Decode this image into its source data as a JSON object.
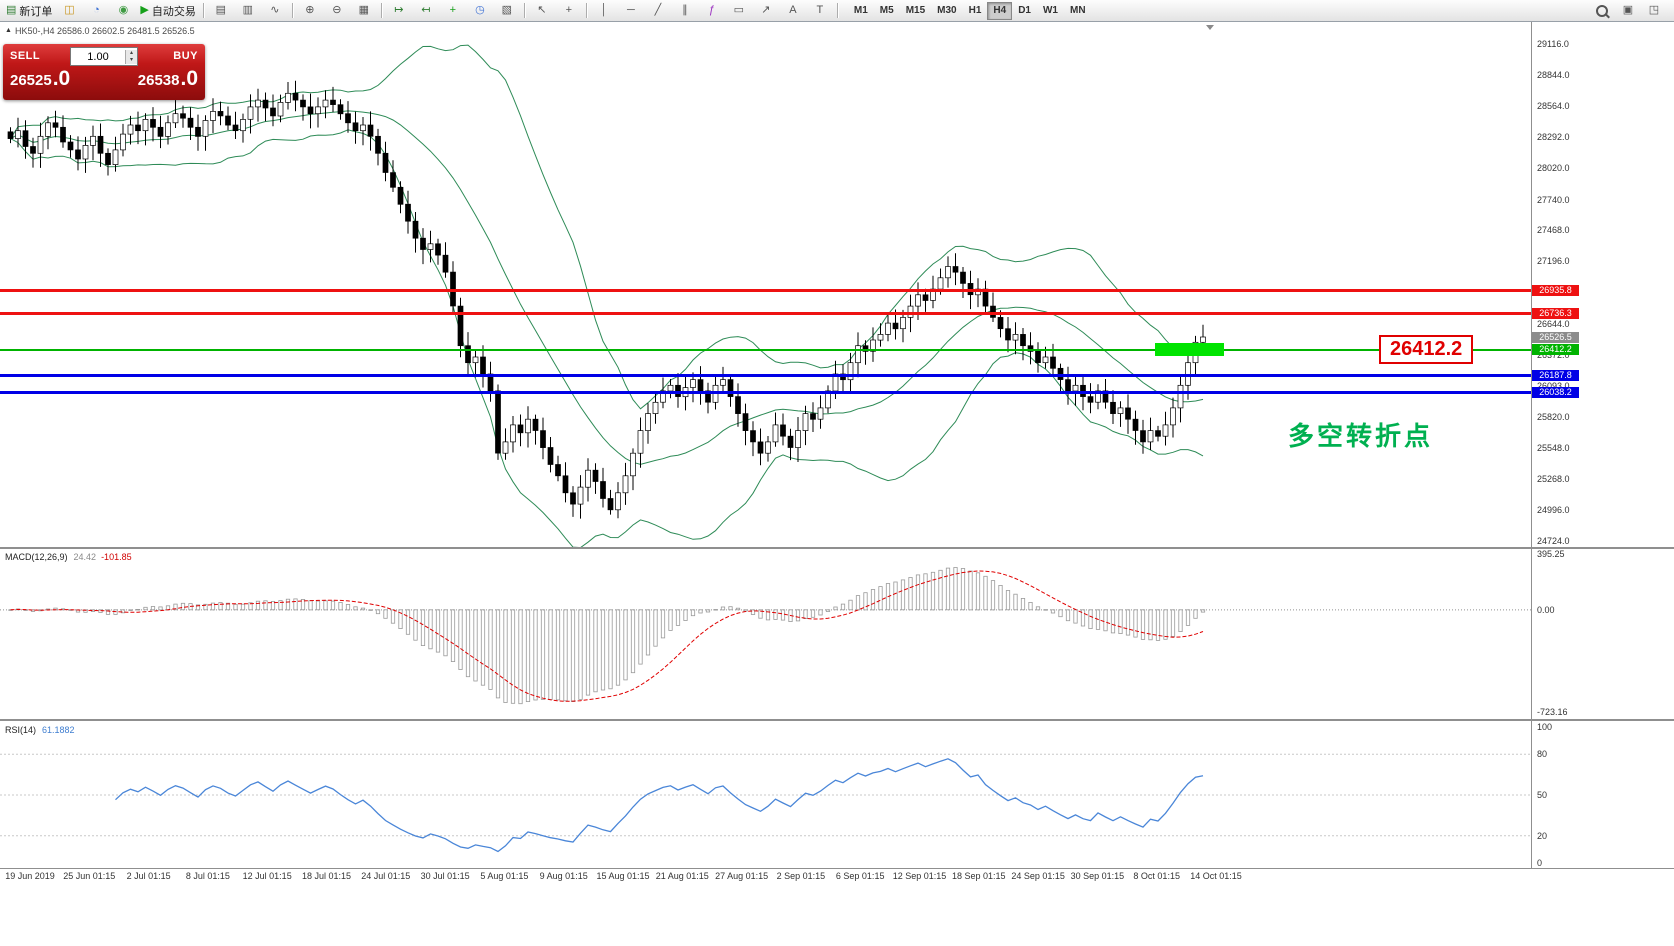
{
  "colors": {
    "up_candle": "#ffffff",
    "down_candle": "#000000",
    "bollinger": "#2e8b57",
    "macd_signal": "#e00000",
    "macd_histogram": "#9a9a9a",
    "rsi_line": "#4a86d8",
    "resistance": "#ee1111",
    "support": "#0000e6",
    "pivot": "#00b300",
    "highlight_box": "#00e400"
  },
  "toolbar": {
    "items": [
      {
        "t": "btn",
        "name": "new-order-button",
        "glyph": "▤",
        "color": "#2f7d32",
        "label": "新订单"
      },
      {
        "t": "btn",
        "name": "symbols-button",
        "glyph": "◫",
        "color": "#c8951d"
      },
      {
        "t": "btn",
        "name": "profile-button",
        "glyph": "◔",
        "color": "#3b6fd4"
      },
      {
        "t": "btn",
        "name": "refresh-button",
        "glyph": "◉",
        "color": "#3f9b43"
      },
      {
        "t": "btn",
        "name": "autotrading-button",
        "glyph": "▶",
        "color": "#16a01a",
        "label": "自动交易"
      },
      {
        "t": "sep"
      },
      {
        "t": "btn",
        "name": "bar-chart-button",
        "glyph": "▤"
      },
      {
        "t": "btn",
        "name": "candlestick-chart-button",
        "glyph": "▥"
      },
      {
        "t": "btn",
        "name": "line-chart-button",
        "glyph": "∿"
      },
      {
        "t": "sep"
      },
      {
        "t": "btn",
        "name": "zoom-in-button",
        "glyph": "⊕"
      },
      {
        "t": "btn",
        "name": "zoom-out-button",
        "glyph": "⊖"
      },
      {
        "t": "btn",
        "name": "tile-windows-button",
        "glyph": "▦"
      },
      {
        "t": "sep"
      },
      {
        "t": "btn",
        "name": "auto-scroll-button",
        "glyph": "↦",
        "color": "#2f7d32"
      },
      {
        "t": "btn",
        "name": "chart-shift-button",
        "glyph": "↤",
        "color": "#2f7d32"
      },
      {
        "t": "btn",
        "name": "indicators-button",
        "glyph": "+",
        "color": "#16a01a"
      },
      {
        "t": "btn",
        "name": "periods-button",
        "glyph": "◷",
        "color": "#3b6fd4"
      },
      {
        "t": "btn",
        "name": "templates-button",
        "glyph": "▧"
      },
      {
        "t": "sep"
      },
      {
        "t": "btn",
        "name": "cursor-button",
        "glyph": "↖"
      },
      {
        "t": "btn",
        "name": "crosshair-button",
        "glyph": "+"
      },
      {
        "t": "sep"
      },
      {
        "t": "btn",
        "name": "vertical-line-button",
        "glyph": "│"
      },
      {
        "t": "btn",
        "name": "horizontal-line-button",
        "glyph": "─"
      },
      {
        "t": "btn",
        "name": "trendline-button",
        "glyph": "╱"
      },
      {
        "t": "btn",
        "name": "channel-button",
        "glyph": "∥"
      },
      {
        "t": "btn",
        "name": "fibonacci-button",
        "glyph": "ƒ",
        "color": "#9b30c0"
      },
      {
        "t": "btn",
        "name": "shapes-button",
        "glyph": "▭"
      },
      {
        "t": "btn",
        "name": "arrows-button",
        "glyph": "↗"
      },
      {
        "t": "btn",
        "name": "text-button",
        "glyph": "A"
      },
      {
        "t": "btn",
        "name": "text-label-button",
        "glyph": "T"
      },
      {
        "t": "sep"
      }
    ],
    "timeframes": [
      "M1",
      "M5",
      "M15",
      "M30",
      "H1",
      "H4",
      "D1",
      "W1",
      "MN"
    ],
    "active_timeframe": "H4",
    "right_items": [
      {
        "name": "search-button",
        "glyph": "MAG"
      },
      {
        "name": "new-chart-button",
        "glyph": "▣"
      },
      {
        "name": "window-list-button",
        "glyph": "◳"
      }
    ]
  },
  "header": {
    "icon": "▲",
    "ohlc": "HK50-,H4  26586.0 26602.5 26481.5 26526.5"
  },
  "trade_panel": {
    "sell_label": "SELL",
    "buy_label": "BUY",
    "volume": "1.00",
    "volume_up": "▴",
    "volume_down": "▾",
    "sell_price": "26525",
    "sell_pips": ".0",
    "buy_price": "26538",
    "buy_pips": ".0"
  },
  "levels": [
    {
      "name": "resistance-line-1",
      "price": 26935.8,
      "label": "26935.8",
      "color": "#ee1111",
      "thickness": 3
    },
    {
      "name": "resistance-line-2",
      "price": 26736.3,
      "label": "26736.3",
      "color": "#ee1111",
      "thickness": 3
    },
    {
      "name": "pivot-line",
      "price": 26412.2,
      "label": "26412.2",
      "color": "#00b300",
      "thickness": 2
    },
    {
      "name": "support-line-1",
      "price": 26187.8,
      "label": "26187.8",
      "color": "#0000e6",
      "thickness": 3
    },
    {
      "name": "support-line-2",
      "price": 26038.2,
      "label": "26038.2",
      "color": "#0000e6",
      "thickness": 3
    }
  ],
  "current_price": {
    "label": "26526.5",
    "color": "#8c8c8c"
  },
  "callout": {
    "text": "26412.2"
  },
  "annotation": {
    "text": "多空转折点"
  },
  "price_axis": {
    "ticks": [
      29116.0,
      28844.0,
      28564.0,
      28292.0,
      28020.0,
      27740.0,
      27468.0,
      27196.0,
      26916.0,
      26644.0,
      26372.0,
      26093.0,
      25820.0,
      25548.0,
      25268.0,
      24996.0,
      24724.0
    ]
  },
  "time_axis": {
    "labels": [
      "19 Jun 2019",
      "25 Jun 01:15",
      "2 Jul 01:15",
      "8 Jul 01:15",
      "12 Jul 01:15",
      "18 Jul 01:15",
      "24 Jul 01:15",
      "30 Jul 01:15",
      "5 Aug 01:15",
      "9 Aug 01:15",
      "15 Aug 01:15",
      "21 Aug 01:15",
      "27 Aug 01:15",
      "2 Sep 01:15",
      "6 Sep 01:15",
      "12 Sep 01:15",
      "18 Sep 01:15",
      "24 Sep 01:15",
      "30 Sep 01:15",
      "8 Oct 01:15",
      "14 Oct 01:15"
    ]
  },
  "macd": {
    "name": "MACD(12,26,9)",
    "value_main": "24.42",
    "value_signal": "-101.85",
    "scale": [
      "395.25",
      "0.00",
      "-723.16"
    ]
  },
  "rsi": {
    "name": "RSI(14)",
    "value": "61.1882",
    "scale": [
      "100",
      "80",
      "50",
      "20",
      "0"
    ]
  },
  "chart_data": {
    "type": "candlestick",
    "symbol": "HK50-",
    "period": "H4",
    "ohlc_display": {
      "open": 26586.0,
      "high": 26602.5,
      "low": 26481.5,
      "close": 26526.5
    },
    "bid": "26525.0",
    "ask": "26538.0",
    "bollinger": {
      "period": 20,
      "deviation": 2
    },
    "closes": [
      28280,
      28350,
      28210,
      28150,
      28300,
      28420,
      28380,
      28250,
      28180,
      28100,
      28220,
      28300,
      28150,
      28050,
      28180,
      28320,
      28400,
      28350,
      28450,
      28380,
      28300,
      28420,
      28500,
      28460,
      28380,
      28300,
      28440,
      28520,
      28480,
      28400,
      28350,
      28450,
      28560,
      28620,
      28550,
      28480,
      28600,
      28680,
      28620,
      28560,
      28500,
      28560,
      28620,
      28580,
      28500,
      28420,
      28350,
      28400,
      28300,
      28150,
      27980,
      27850,
      27700,
      27550,
      27400,
      27300,
      27350,
      27250,
      27100,
      26800,
      26450,
      26300,
      26350,
      26200,
      26050,
      25500,
      25600,
      25750,
      25680,
      25800,
      25700,
      25550,
      25400,
      25300,
      25150,
      25050,
      25200,
      25350,
      25250,
      25100,
      25000,
      25150,
      25300,
      25500,
      25700,
      25850,
      25950,
      26050,
      26100,
      26000,
      26080,
      26150,
      26050,
      25950,
      26100,
      26150,
      26000,
      25850,
      25700,
      25600,
      25500,
      25600,
      25750,
      25650,
      25550,
      25700,
      25850,
      25800,
      25900,
      26050,
      26200,
      26150,
      26300,
      26450,
      26400,
      26500,
      26550,
      26650,
      26600,
      26700,
      26800,
      26900,
      26850,
      26950,
      27050,
      27150,
      27100,
      27000,
      26900,
      26950,
      26800,
      26700,
      26600,
      26500,
      26550,
      26450,
      26400,
      26300,
      26350,
      26250,
      26150,
      26050,
      26100,
      26000,
      25950,
      26050,
      25950,
      25850,
      25900,
      25800,
      25700,
      25600,
      25700,
      25650,
      25750,
      25900,
      26100,
      26300,
      26480,
      26527
    ]
  }
}
